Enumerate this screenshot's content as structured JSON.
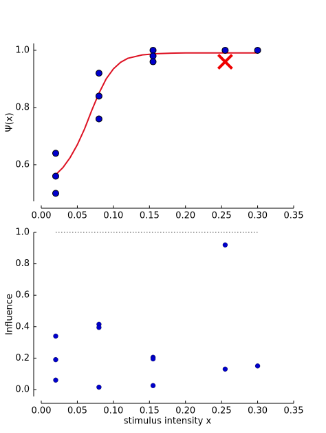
{
  "chart_data": [
    {
      "type": "scatter",
      "ylabel": "Ψ(x)",
      "xlim": [
        -0.0105,
        0.35
      ],
      "xticks": [
        {
          "value": 0,
          "label": "0.00"
        },
        0.05,
        {
          "value": 0.1,
          "label": "0.10"
        },
        0.15,
        {
          "value": 0.2,
          "label": "0.20"
        },
        0.25,
        {
          "value": 0.3,
          "label": "0.30"
        },
        0.35
      ],
      "ylim": [
        0.472,
        1.024
      ],
      "yticks": [
        0.6,
        0.8,
        {
          "value": 1.0,
          "label": "1.0"
        }
      ],
      "series": [
        {
          "marker": "line",
          "color": "#dd1122",
          "x": [
            0.02,
            0.03,
            0.04,
            0.05,
            0.06,
            0.07,
            0.08,
            0.09,
            0.1,
            0.11,
            0.12,
            0.14,
            0.16,
            0.18,
            0.2,
            0.24,
            0.3
          ],
          "values": [
            0.565,
            0.59,
            0.625,
            0.67,
            0.725,
            0.79,
            0.85,
            0.9,
            0.935,
            0.958,
            0.972,
            0.984,
            0.988,
            0.99,
            0.991,
            0.991,
            0.991
          ]
        },
        {
          "marker": "o",
          "color": "#0000cc",
          "x": [
            0.02,
            0.02,
            0.02,
            0.08,
            0.08,
            0.08,
            0.155,
            0.155,
            0.155,
            0.255,
            0.3
          ],
          "values": [
            0.64,
            0.56,
            0.5,
            0.92,
            0.84,
            0.76,
            1.0,
            0.98,
            0.96,
            1.0,
            1.0
          ]
        },
        {
          "marker": "x",
          "color": "#ee0000",
          "x": [
            0.255
          ],
          "values": [
            0.96
          ]
        }
      ]
    },
    {
      "type": "scatter",
      "ylabel": "Influence",
      "xlabel": "stimulus intensity x",
      "xlim": [
        -0.0105,
        0.35
      ],
      "xticks": [
        {
          "value": 0,
          "label": "0.00"
        },
        0.05,
        {
          "value": 0.1,
          "label": "0.10"
        },
        0.15,
        {
          "value": 0.2,
          "label": "0.20"
        },
        0.25,
        {
          "value": 0.3,
          "label": "0.30"
        },
        0.35
      ],
      "ylim": [
        -0.044,
        1.0
      ],
      "yticks": [
        {
          "value": 0,
          "label": "0.0"
        },
        0.2,
        0.4,
        0.6,
        0.8,
        {
          "value": 1.0,
          "label": "1.0"
        }
      ],
      "hline": {
        "value": 1.0,
        "xlim": [
          0.02,
          0.3
        ]
      },
      "series": [
        {
          "marker": "o",
          "color": "#0000cc",
          "size": "small",
          "x": [
            0.02,
            0.02,
            0.02,
            0.08,
            0.08,
            0.08,
            0.155,
            0.155,
            0.155,
            0.255,
            0.255,
            0.3
          ],
          "values": [
            0.34,
            0.19,
            0.06,
            0.415,
            0.395,
            0.015,
            0.205,
            0.195,
            0.025,
            0.92,
            0.13,
            0.15
          ]
        }
      ]
    }
  ]
}
